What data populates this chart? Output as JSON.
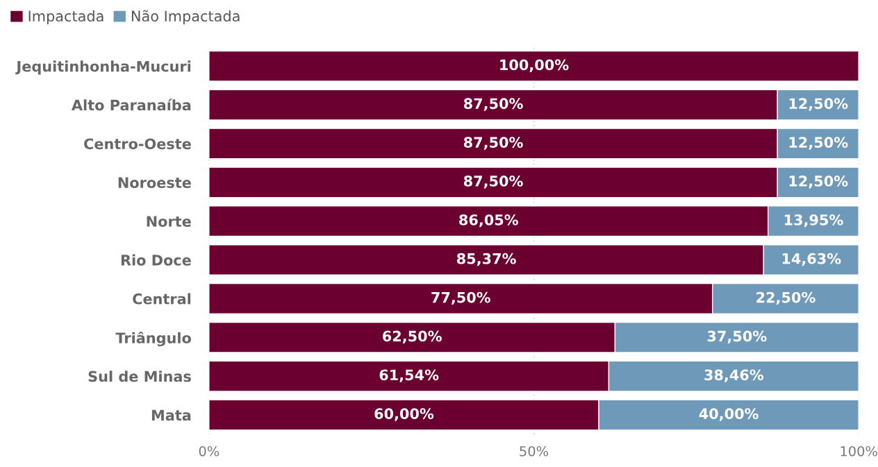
{
  "chart_data": {
    "type": "bar",
    "orientation": "horizontal",
    "stacked": true,
    "categories": [
      "Jequitinhonha-Mucuri",
      "Alto Paranaíba",
      "Centro-Oeste",
      "Noroeste",
      "Norte",
      "Rio Doce",
      "Central",
      "Triângulo",
      "Sul de Minas",
      "Mata"
    ],
    "series": [
      {
        "name": "Impactada",
        "color": "#6b0030",
        "values": [
          100,
          87.5,
          87.5,
          87.5,
          86.05,
          85.37,
          77.5,
          62.5,
          61.54,
          60
        ],
        "value_labels": [
          "100,00%",
          "87,50%",
          "87,50%",
          "87,50%",
          "86,05%",
          "85,37%",
          "77,50%",
          "62,50%",
          "61,54%",
          "60,00%"
        ]
      },
      {
        "name": "Não Impactada",
        "color": "#6f99b8",
        "values": [
          null,
          12.5,
          12.5,
          12.5,
          13.95,
          14.63,
          22.5,
          37.5,
          38.46,
          40
        ],
        "value_labels": [
          null,
          "12,50%",
          "12,50%",
          "12,50%",
          "13,95%",
          "14,63%",
          "22,50%",
          "37,50%",
          "38,46%",
          "40,00%"
        ]
      }
    ],
    "xlim": [
      0,
      100
    ],
    "xticks": [
      {
        "value": 0,
        "label": "0%"
      },
      {
        "value": 50,
        "label": "50%"
      },
      {
        "value": 100,
        "label": "100%"
      }
    ],
    "grid": "x",
    "legend": "top left"
  }
}
